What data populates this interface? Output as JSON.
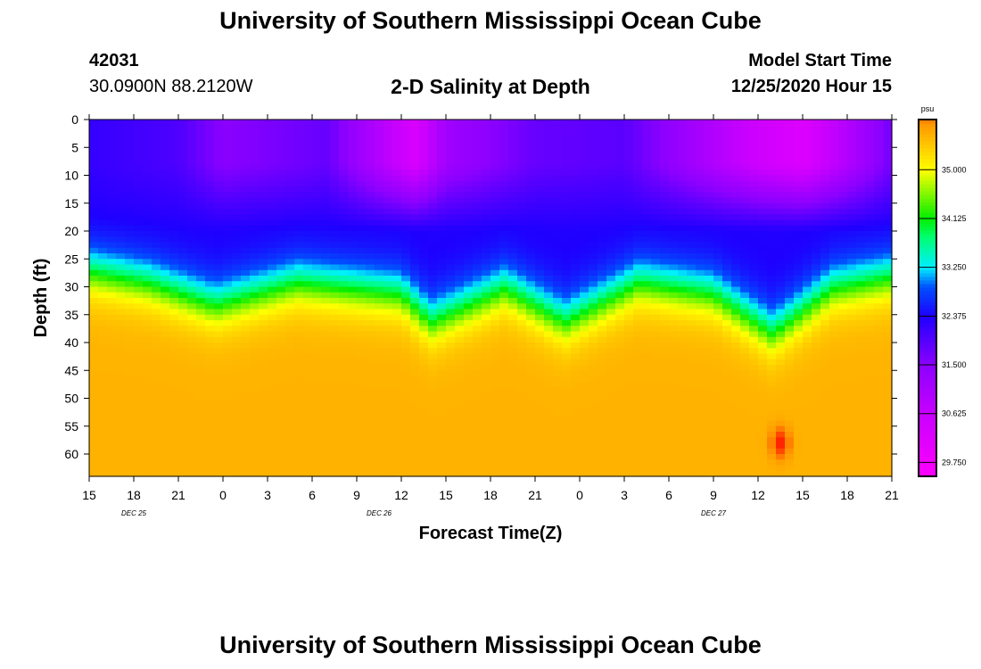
{
  "header": {
    "title": "University of Southern Mississippi Ocean Cube",
    "station_id": "42031",
    "station_coords": "30.0900N 88.2120W",
    "chart_title": "2-D Salinity at Depth",
    "model_start_label": "Model Start Time",
    "model_start_value": "12/25/2020 Hour 15"
  },
  "footer": {
    "title": "University of Southern Mississippi Ocean Cube"
  },
  "chart_data": {
    "type": "heatmap",
    "title": "2-D Salinity at Depth",
    "xlabel": "Forecast Time(Z)",
    "ylabel": "Depth (ft)",
    "x_tick_labels": [
      "15",
      "18",
      "21",
      "0",
      "3",
      "6",
      "9",
      "12",
      "15",
      "18",
      "21",
      "0",
      "3",
      "6",
      "9",
      "12",
      "15",
      "18",
      "21"
    ],
    "x_range_hours": [
      0,
      54
    ],
    "x_tick_step_hours": 3,
    "date_labels": [
      {
        "text": "DEC 25",
        "hour": 3
      },
      {
        "text": "DEC 26",
        "hour": 19.5
      },
      {
        "text": "DEC 27",
        "hour": 42
      }
    ],
    "y_ticks": [
      0,
      5,
      10,
      15,
      20,
      25,
      30,
      35,
      40,
      45,
      50,
      55,
      60
    ],
    "y_range": [
      0,
      64
    ],
    "y_inverted": true,
    "colorbar": {
      "unit": "psu",
      "ticks": [
        29.75,
        30.625,
        31.5,
        32.375,
        33.25,
        34.125,
        35.0
      ],
      "tick_labels": [
        "29.750",
        "30.625",
        "31.500",
        "32.375",
        "33.250",
        "34.125",
        "35.000"
      ],
      "range": [
        29.5,
        35.9
      ],
      "colors": [
        {
          "v": 29.5,
          "c": "#ff00ff"
        },
        {
          "v": 30.625,
          "c": "#c800ff"
        },
        {
          "v": 31.5,
          "c": "#8c00ff"
        },
        {
          "v": 32.375,
          "c": "#1e00ff"
        },
        {
          "v": 32.9,
          "c": "#0050ff"
        },
        {
          "v": 33.25,
          "c": "#00f0ff"
        },
        {
          "v": 33.8,
          "c": "#00ff70"
        },
        {
          "v": 34.125,
          "c": "#00ee00"
        },
        {
          "v": 35.0,
          "c": "#ffff00"
        },
        {
          "v": 35.4,
          "c": "#ffcc00"
        },
        {
          "v": 35.8,
          "c": "#ff9a00"
        },
        {
          "v": 36.2,
          "c": "#ff2000"
        }
      ]
    },
    "surface_salinity_psu": [
      {
        "hour": 0,
        "v": 32.2
      },
      {
        "hour": 6,
        "v": 32.0
      },
      {
        "hour": 9,
        "v": 31.5
      },
      {
        "hour": 16,
        "v": 31.8
      },
      {
        "hour": 22,
        "v": 30.3
      },
      {
        "hour": 24,
        "v": 31.2
      },
      {
        "hour": 30,
        "v": 31.8
      },
      {
        "hour": 36,
        "v": 31.9
      },
      {
        "hour": 45,
        "v": 30.5
      },
      {
        "hour": 48,
        "v": 30.2
      },
      {
        "hour": 54,
        "v": 31.7
      }
    ],
    "halocline_depth_ft": [
      {
        "hour": 0,
        "v": 27
      },
      {
        "hour": 4,
        "v": 29
      },
      {
        "hour": 8.5,
        "v": 33
      },
      {
        "hour": 14,
        "v": 29
      },
      {
        "hour": 21,
        "v": 31
      },
      {
        "hour": 23,
        "v": 36
      },
      {
        "hour": 28,
        "v": 30
      },
      {
        "hour": 32,
        "v": 36
      },
      {
        "hour": 37,
        "v": 29
      },
      {
        "hour": 42,
        "v": 31
      },
      {
        "hour": 46,
        "v": 38
      },
      {
        "hour": 50,
        "v": 30
      },
      {
        "hour": 54,
        "v": 28
      }
    ],
    "deep_salinity_psu": 35.6,
    "max_salinity_patch": {
      "hour": 46.5,
      "depth_ft": 58,
      "v": 36.2
    }
  }
}
